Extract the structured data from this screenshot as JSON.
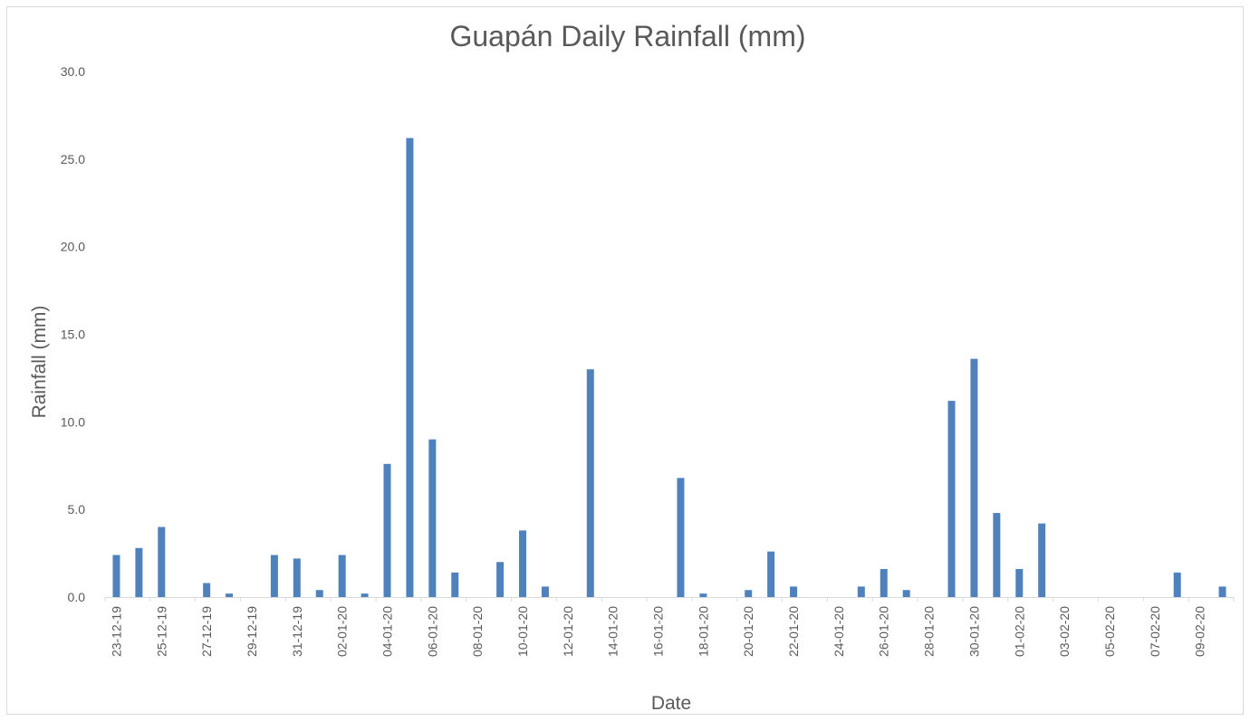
{
  "chart_data": {
    "type": "bar",
    "title": "Guapán Daily Rainfall (mm)",
    "xlabel": "Date",
    "ylabel": "Rainfall (mm)",
    "ylim": [
      0,
      30
    ],
    "yticks": [
      "0.0",
      "5.0",
      "10.0",
      "15.0",
      "20.0",
      "25.0",
      "30.0"
    ],
    "grid": false,
    "legend": "none",
    "bar_color": "#4f81bd",
    "categories": [
      "23-12-19",
      "24-12-19",
      "25-12-19",
      "26-12-19",
      "27-12-19",
      "28-12-19",
      "29-12-19",
      "30-12-19",
      "31-12-19",
      "01-01-20",
      "02-01-20",
      "03-01-20",
      "04-01-20",
      "05-01-20",
      "06-01-20",
      "07-01-20",
      "08-01-20",
      "09-01-20",
      "10-01-20",
      "11-01-20",
      "12-01-20",
      "13-01-20",
      "14-01-20",
      "15-01-20",
      "16-01-20",
      "17-01-20",
      "18-01-20",
      "19-01-20",
      "20-01-20",
      "21-01-20",
      "22-01-20",
      "23-01-20",
      "24-01-20",
      "25-01-20",
      "26-01-20",
      "27-01-20",
      "28-01-20",
      "29-01-20",
      "30-01-20",
      "31-01-20",
      "01-02-20",
      "02-02-20",
      "03-02-20",
      "04-02-20",
      "05-02-20",
      "06-02-20",
      "07-02-20",
      "08-02-20",
      "09-02-20",
      "10-02-20"
    ],
    "tick_labels": [
      "23-12-19",
      "25-12-19",
      "27-12-19",
      "29-12-19",
      "31-12-19",
      "02-01-20",
      "04-01-20",
      "06-01-20",
      "08-01-20",
      "10-01-20",
      "12-01-20",
      "14-01-20",
      "16-01-20",
      "18-01-20",
      "20-01-20",
      "22-01-20",
      "24-01-20",
      "26-01-20",
      "28-01-20",
      "30-01-20",
      "01-02-20",
      "03-02-20",
      "05-02-20",
      "07-02-20",
      "09-02-20"
    ],
    "values": [
      2.4,
      2.8,
      4.0,
      0,
      0.8,
      0.2,
      0,
      2.4,
      2.2,
      0.4,
      2.4,
      0.2,
      7.6,
      26.2,
      9.0,
      1.4,
      0,
      2.0,
      3.8,
      0.6,
      0,
      13.0,
      0,
      0,
      0,
      6.8,
      0.2,
      0,
      0.4,
      2.6,
      0.6,
      0,
      0,
      0.6,
      1.6,
      0.4,
      0,
      11.2,
      13.6,
      4.8,
      1.6,
      4.2,
      0,
      0,
      0,
      0,
      0,
      1.4,
      0,
      0.6
    ]
  }
}
